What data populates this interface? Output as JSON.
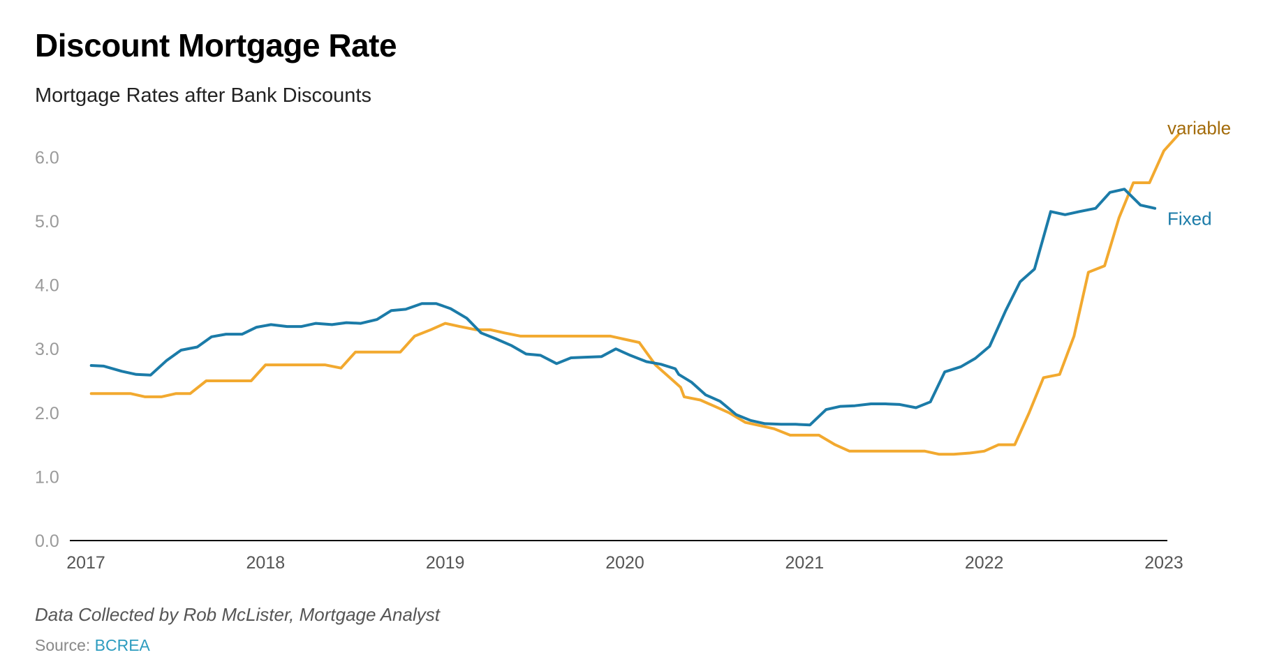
{
  "header": {
    "title": "Discount Mortgage Rate",
    "subtitle": "Mortgage Rates after Bank Discounts"
  },
  "footer": {
    "note": "Data Collected by Rob McLister, Mortgage Analyst",
    "source_prefix": "Source:",
    "source_name": "BCREA"
  },
  "colors": {
    "variable": "#f2a92f",
    "fixed": "#1b7ba8",
    "variable_label": "#a36b0a",
    "fixed_label": "#1b7ba8",
    "axis": "#000000",
    "tick_text": "#9a9a9a",
    "x_tick_text": "#555555",
    "link": "#2d9cbf"
  },
  "chart_data": {
    "type": "line",
    "title": "Discount Mortgage Rate",
    "subtitle": "Mortgage Rates after Bank Discounts",
    "xlabel": "",
    "ylabel": "",
    "xlim": [
      2017,
      2023
    ],
    "ylim": [
      0,
      6.5
    ],
    "grid": false,
    "legend": "direct labels at line ends",
    "y_ticks": [
      0,
      1,
      2,
      3,
      4,
      5,
      6
    ],
    "y_tick_labels": [
      "0.0",
      "1.0",
      "2.0",
      "3.0",
      "4.0",
      "5.0",
      "6.0"
    ],
    "x_ticks": [
      2017,
      2018,
      2019,
      2020,
      2021,
      2022,
      2023
    ],
    "x_tick_labels": [
      "2017",
      "2018",
      "2019",
      "2020",
      "2021",
      "2022",
      "2023"
    ],
    "series": [
      {
        "name": "variable",
        "color": "#f2a92f",
        "points": [
          [
            2017.03,
            2.3
          ],
          [
            2017.17,
            2.3
          ],
          [
            2017.25,
            2.3
          ],
          [
            2017.33,
            2.25
          ],
          [
            2017.42,
            2.25
          ],
          [
            2017.5,
            2.3
          ],
          [
            2017.58,
            2.3
          ],
          [
            2017.67,
            2.5
          ],
          [
            2017.75,
            2.5
          ],
          [
            2017.83,
            2.5
          ],
          [
            2017.92,
            2.5
          ],
          [
            2018.0,
            2.75
          ],
          [
            2018.08,
            2.75
          ],
          [
            2018.17,
            2.75
          ],
          [
            2018.25,
            2.75
          ],
          [
            2018.33,
            2.75
          ],
          [
            2018.42,
            2.7
          ],
          [
            2018.5,
            2.95
          ],
          [
            2018.58,
            2.95
          ],
          [
            2018.67,
            2.95
          ],
          [
            2018.75,
            2.95
          ],
          [
            2018.83,
            3.2
          ],
          [
            2018.92,
            3.3
          ],
          [
            2019.0,
            3.4
          ],
          [
            2019.08,
            3.35
          ],
          [
            2019.17,
            3.3
          ],
          [
            2019.25,
            3.3
          ],
          [
            2019.33,
            3.25
          ],
          [
            2019.42,
            3.2
          ],
          [
            2019.5,
            3.2
          ],
          [
            2019.58,
            3.2
          ],
          [
            2019.67,
            3.2
          ],
          [
            2019.75,
            3.2
          ],
          [
            2019.83,
            3.2
          ],
          [
            2019.92,
            3.2
          ],
          [
            2020.0,
            3.15
          ],
          [
            2020.08,
            3.1
          ],
          [
            2020.17,
            2.75
          ],
          [
            2020.25,
            2.55
          ],
          [
            2020.31,
            2.4
          ],
          [
            2020.33,
            2.25
          ],
          [
            2020.42,
            2.2
          ],
          [
            2020.5,
            2.1
          ],
          [
            2020.58,
            2.0
          ],
          [
            2020.67,
            1.85
          ],
          [
            2020.75,
            1.8
          ],
          [
            2020.83,
            1.75
          ],
          [
            2020.92,
            1.65
          ],
          [
            2021.0,
            1.65
          ],
          [
            2021.08,
            1.65
          ],
          [
            2021.17,
            1.5
          ],
          [
            2021.25,
            1.4
          ],
          [
            2021.33,
            1.4
          ],
          [
            2021.42,
            1.4
          ],
          [
            2021.5,
            1.4
          ],
          [
            2021.58,
            1.4
          ],
          [
            2021.67,
            1.4
          ],
          [
            2021.75,
            1.35
          ],
          [
            2021.83,
            1.35
          ],
          [
            2021.92,
            1.37
          ],
          [
            2022.0,
            1.4
          ],
          [
            2022.08,
            1.5
          ],
          [
            2022.17,
            1.5
          ],
          [
            2022.25,
            2.0
          ],
          [
            2022.33,
            2.55
          ],
          [
            2022.42,
            2.6
          ],
          [
            2022.5,
            3.2
          ],
          [
            2022.58,
            4.2
          ],
          [
            2022.67,
            4.3
          ],
          [
            2022.75,
            5.05
          ],
          [
            2022.83,
            5.6
          ],
          [
            2022.92,
            5.6
          ],
          [
            2023.0,
            6.1
          ],
          [
            2023.08,
            6.35
          ]
        ]
      },
      {
        "name": "Fixed",
        "color": "#1b7ba8",
        "points": [
          [
            2017.03,
            2.74
          ],
          [
            2017.1,
            2.73
          ],
          [
            2017.2,
            2.65
          ],
          [
            2017.28,
            2.6
          ],
          [
            2017.36,
            2.59
          ],
          [
            2017.45,
            2.82
          ],
          [
            2017.53,
            2.98
          ],
          [
            2017.62,
            3.03
          ],
          [
            2017.7,
            3.19
          ],
          [
            2017.78,
            3.23
          ],
          [
            2017.87,
            3.23
          ],
          [
            2017.95,
            3.34
          ],
          [
            2018.03,
            3.38
          ],
          [
            2018.12,
            3.35
          ],
          [
            2018.2,
            3.35
          ],
          [
            2018.28,
            3.4
          ],
          [
            2018.37,
            3.38
          ],
          [
            2018.45,
            3.41
          ],
          [
            2018.53,
            3.4
          ],
          [
            2018.62,
            3.46
          ],
          [
            2018.7,
            3.6
          ],
          [
            2018.78,
            3.62
          ],
          [
            2018.87,
            3.71
          ],
          [
            2018.95,
            3.71
          ],
          [
            2019.03,
            3.63
          ],
          [
            2019.12,
            3.48
          ],
          [
            2019.2,
            3.25
          ],
          [
            2019.28,
            3.16
          ],
          [
            2019.37,
            3.05
          ],
          [
            2019.45,
            2.92
          ],
          [
            2019.53,
            2.9
          ],
          [
            2019.62,
            2.77
          ],
          [
            2019.7,
            2.86
          ],
          [
            2019.78,
            2.87
          ],
          [
            2019.87,
            2.88
          ],
          [
            2019.95,
            3.0
          ],
          [
            2020.03,
            2.9
          ],
          [
            2020.12,
            2.8
          ],
          [
            2020.2,
            2.76
          ],
          [
            2020.28,
            2.69
          ],
          [
            2020.3,
            2.6
          ],
          [
            2020.37,
            2.48
          ],
          [
            2020.45,
            2.28
          ],
          [
            2020.53,
            2.18
          ],
          [
            2020.62,
            1.97
          ],
          [
            2020.7,
            1.88
          ],
          [
            2020.78,
            1.83
          ],
          [
            2020.87,
            1.82
          ],
          [
            2020.95,
            1.82
          ],
          [
            2021.03,
            1.81
          ],
          [
            2021.12,
            2.05
          ],
          [
            2021.2,
            2.1
          ],
          [
            2021.28,
            2.11
          ],
          [
            2021.37,
            2.14
          ],
          [
            2021.45,
            2.14
          ],
          [
            2021.53,
            2.13
          ],
          [
            2021.62,
            2.08
          ],
          [
            2021.7,
            2.17
          ],
          [
            2021.78,
            2.64
          ],
          [
            2021.87,
            2.72
          ],
          [
            2021.95,
            2.85
          ],
          [
            2022.03,
            3.04
          ],
          [
            2022.12,
            3.6
          ],
          [
            2022.2,
            4.05
          ],
          [
            2022.28,
            4.25
          ],
          [
            2022.37,
            5.15
          ],
          [
            2022.45,
            5.1
          ],
          [
            2022.53,
            5.15
          ],
          [
            2022.62,
            5.2
          ],
          [
            2022.7,
            5.45
          ],
          [
            2022.78,
            5.5
          ],
          [
            2022.87,
            5.25
          ],
          [
            2022.95,
            5.2
          ]
        ]
      }
    ]
  }
}
